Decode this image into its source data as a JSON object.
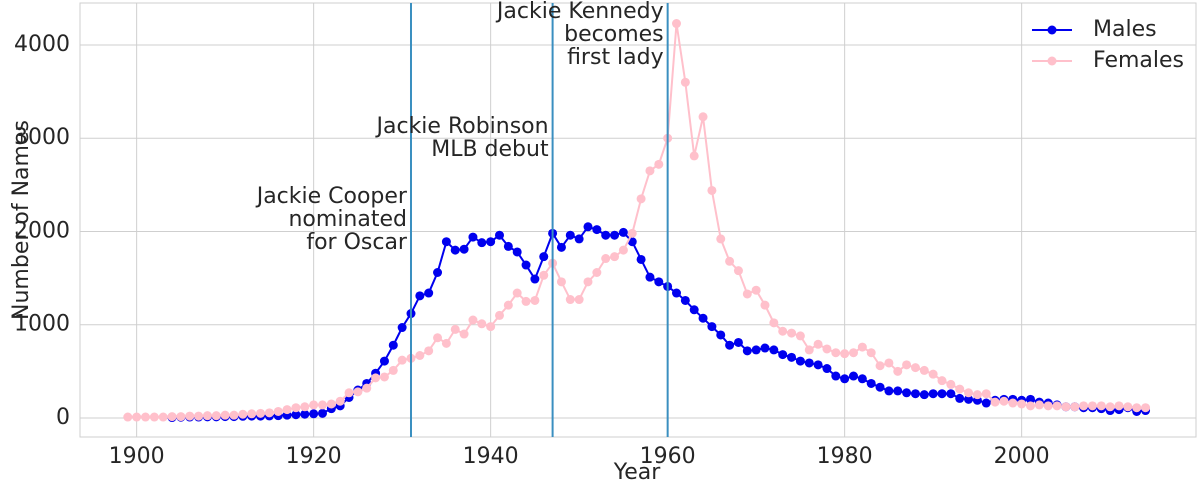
{
  "chart_data": {
    "type": "line",
    "xlabel": "Year",
    "ylabel": "Number of Names",
    "x": [
      1899,
      1900,
      1901,
      1902,
      1903,
      1904,
      1905,
      1906,
      1907,
      1908,
      1909,
      1910,
      1911,
      1912,
      1913,
      1914,
      1915,
      1916,
      1917,
      1918,
      1919,
      1920,
      1921,
      1922,
      1923,
      1924,
      1925,
      1926,
      1927,
      1928,
      1929,
      1930,
      1931,
      1932,
      1933,
      1934,
      1935,
      1936,
      1937,
      1938,
      1939,
      1940,
      1941,
      1942,
      1943,
      1944,
      1945,
      1946,
      1947,
      1948,
      1949,
      1950,
      1951,
      1952,
      1953,
      1954,
      1955,
      1956,
      1957,
      1958,
      1959,
      1960,
      1961,
      1962,
      1963,
      1964,
      1965,
      1966,
      1967,
      1968,
      1969,
      1970,
      1971,
      1972,
      1973,
      1974,
      1975,
      1976,
      1977,
      1978,
      1979,
      1980,
      1981,
      1982,
      1983,
      1984,
      1985,
      1986,
      1987,
      1988,
      1989,
      1990,
      1991,
      1992,
      1993,
      1994,
      1995,
      1996,
      1997,
      1998,
      1999,
      2000,
      2001,
      2002,
      2003,
      2004,
      2005,
      2006,
      2007,
      2008,
      2009,
      2010,
      2011,
      2012,
      2013,
      2014
    ],
    "series": [
      {
        "name": "Males",
        "color": "#0000ee",
        "values": [
          null,
          null,
          null,
          null,
          null,
          5,
          8,
          10,
          10,
          12,
          12,
          15,
          15,
          18,
          20,
          20,
          22,
          25,
          30,
          35,
          40,
          45,
          50,
          100,
          130,
          220,
          300,
          370,
          480,
          610,
          780,
          970,
          1120,
          1310,
          1340,
          1560,
          1890,
          1800,
          1810,
          1940,
          1880,
          1890,
          1960,
          1840,
          1780,
          1640,
          1490,
          1730,
          1980,
          1830,
          1960,
          1920,
          2050,
          2020,
          1960,
          1960,
          1990,
          1890,
          1700,
          1510,
          1460,
          1410,
          1340,
          1260,
          1160,
          1070,
          980,
          890,
          780,
          810,
          720,
          730,
          750,
          730,
          680,
          650,
          610,
          590,
          570,
          530,
          450,
          420,
          450,
          420,
          370,
          330,
          290,
          290,
          270,
          260,
          250,
          260,
          260,
          260,
          210,
          200,
          190,
          160,
          190,
          200,
          200,
          190,
          200,
          170,
          160,
          140,
          120,
          120,
          110,
          110,
          100,
          80,
          90,
          110,
          70,
          80
        ]
      },
      {
        "name": "Females",
        "color": "#ffc0cb",
        "values": [
          10,
          10,
          10,
          10,
          10,
          15,
          15,
          20,
          20,
          25,
          25,
          30,
          30,
          40,
          45,
          50,
          55,
          70,
          90,
          110,
          120,
          140,
          140,
          150,
          180,
          270,
          280,
          320,
          430,
          440,
          510,
          620,
          640,
          670,
          720,
          860,
          800,
          950,
          900,
          1050,
          1010,
          980,
          1100,
          1210,
          1340,
          1250,
          1260,
          1530,
          1660,
          1460,
          1270,
          1270,
          1460,
          1560,
          1710,
          1730,
          1800,
          1980,
          2350,
          2650,
          2720,
          3000,
          4230,
          3600,
          2810,
          3230,
          2440,
          1920,
          1680,
          1580,
          1330,
          1370,
          1210,
          1020,
          930,
          910,
          880,
          730,
          790,
          740,
          700,
          690,
          700,
          760,
          700,
          560,
          590,
          500,
          570,
          540,
          510,
          470,
          400,
          360,
          310,
          270,
          250,
          260,
          170,
          180,
          160,
          150,
          130,
          140,
          130,
          130,
          120,
          120,
          130,
          130,
          130,
          120,
          130,
          120,
          110,
          110
        ]
      }
    ],
    "annotations": [
      {
        "x": 1931,
        "lines": [
          "Jackie Cooper",
          "nominated",
          "for Oscar"
        ]
      },
      {
        "x": 1947,
        "lines": [
          "Jackie Robinson",
          "MLB debut"
        ]
      },
      {
        "x": 1960,
        "lines": [
          "Jackie Kennedy",
          "becomes",
          "first lady"
        ]
      }
    ],
    "annotation_color": "#3a8fc0",
    "xlim": [
      1893.6,
      2019.7
    ],
    "xticks": [
      1900,
      1920,
      1940,
      1960,
      1980,
      2000
    ],
    "ylim": [
      -204,
      4450
    ],
    "yticks": [
      0,
      1000,
      2000,
      3000,
      4000
    ],
    "grid": true,
    "legend": "upper right"
  }
}
